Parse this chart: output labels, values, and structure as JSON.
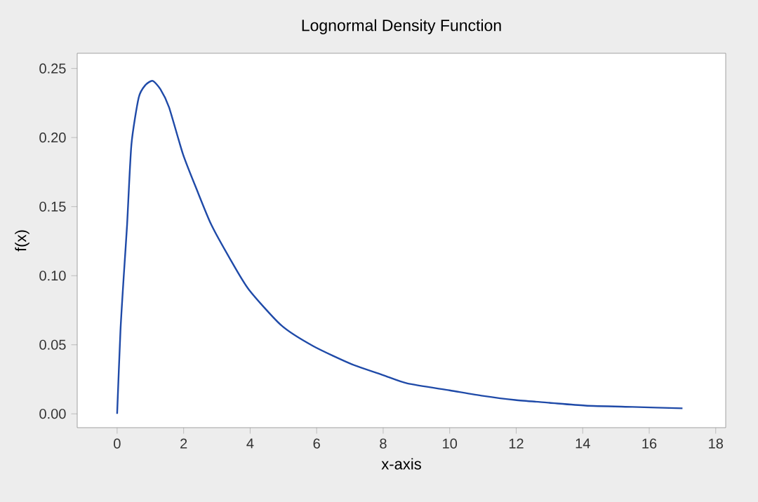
{
  "chart_data": {
    "type": "line",
    "title": "Lognormal Density Function",
    "xlabel": "x-axis",
    "ylabel": "f(x)",
    "series": [
      {
        "color": "#1f4aa8",
        "x": [
          0,
          0.1,
          0.2,
          0.3,
          0.43,
          0.65,
          0.85,
          1.07,
          1.3,
          1.56,
          1.98,
          2.4,
          2.83,
          3.4,
          3.96,
          4.94,
          5.9,
          7.05,
          8.0,
          8.73,
          10,
          11.0,
          11.97,
          13.0,
          14.08,
          15.5,
          17
        ],
        "values": [
          0,
          0.06,
          0.1,
          0.137,
          0.195,
          0.229,
          0.238,
          0.241,
          0.235,
          0.222,
          0.188,
          0.162,
          0.137,
          0.112,
          0.09,
          0.064,
          0.049,
          0.036,
          0.028,
          0.022,
          0.017,
          0.013,
          0.01,
          0.008,
          0.006,
          0.005,
          0.004
        ]
      }
    ],
    "xlim": [
      -1.2,
      18.3
    ],
    "ylim": [
      -0.01,
      0.261
    ],
    "xticks": [
      0,
      2,
      4,
      6,
      8,
      10,
      12,
      14,
      16,
      18
    ],
    "yticks": [
      {
        "value": 0,
        "label": "0.00"
      },
      {
        "value": 0.05,
        "label": "0.05"
      },
      {
        "value": 0.1,
        "label": "0.10"
      },
      {
        "value": 0.15,
        "label": "0.15"
      },
      {
        "value": 0.2,
        "label": "0.20"
      },
      {
        "value": 0.25,
        "label": "0.25"
      }
    ],
    "grid": false,
    "marker": "none",
    "line_style": "solid"
  }
}
